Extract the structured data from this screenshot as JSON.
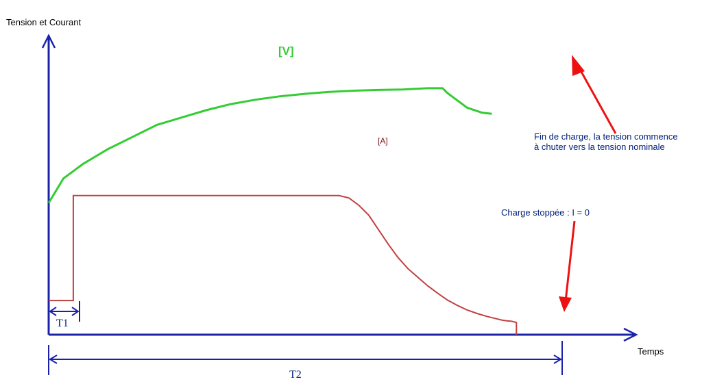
{
  "chart_data": {
    "type": "line",
    "ylabel": "Tension et Courant",
    "xlabel": "Temps",
    "series": [
      {
        "name": "[V]",
        "color": "#33cc33",
        "x": [
          0,
          3,
          7,
          12,
          17,
          22,
          27,
          32,
          37,
          42,
          47,
          52,
          57,
          62,
          67,
          72,
          77,
          80,
          81,
          85,
          88,
          90
        ],
        "y": [
          0.54,
          0.64,
          0.7,
          0.76,
          0.81,
          0.86,
          0.89,
          0.92,
          0.945,
          0.963,
          0.977,
          0.987,
          0.995,
          1.0,
          1.003,
          1.005,
          1.01,
          1.01,
          0.99,
          0.93,
          0.91,
          0.905
        ]
      },
      {
        "name": "[A]",
        "color": "#c04040",
        "x": [
          0,
          5,
          5,
          59,
          61,
          63,
          65,
          67,
          69,
          71,
          73,
          75,
          77,
          79,
          81,
          83,
          85,
          87,
          89,
          91,
          92,
          93,
          94,
          95,
          95
        ],
        "y": [
          0.14,
          0.14,
          0.57,
          0.57,
          0.56,
          0.53,
          0.49,
          0.43,
          0.37,
          0.315,
          0.27,
          0.235,
          0.2,
          0.17,
          0.142,
          0.12,
          0.101,
          0.087,
          0.075,
          0.065,
          0.06,
          0.057,
          0.055,
          0.05,
          0.0
        ]
      }
    ],
    "annotations": [
      {
        "text": "Fin de charge, la tension commence",
        "color": "#001f7a"
      },
      {
        "text": "à chuter vers la tension nominale",
        "color": "#001f7a"
      },
      {
        "text": "Charge stoppée : I = 0",
        "color": "#001f7a"
      }
    ],
    "intervals": [
      {
        "label": "T1",
        "from": 0,
        "to": 5
      },
      {
        "label": "T2",
        "from": 0,
        "to": 95
      }
    ],
    "arrow_color": "#ee1111",
    "axis_color": "#1a22aa",
    "xlim": [
      0,
      110
    ],
    "ylim": [
      0,
      1.15
    ],
    "grid": false
  }
}
